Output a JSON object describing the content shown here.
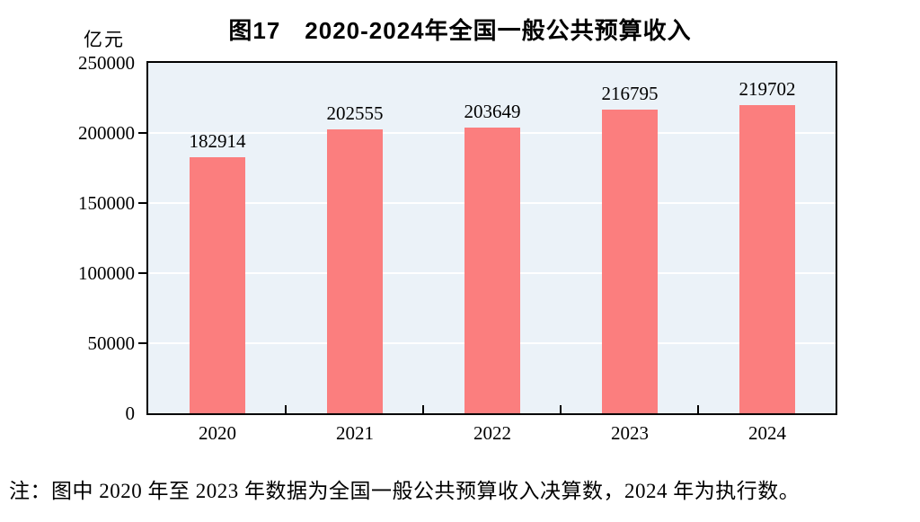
{
  "page": {
    "background": "#FFFFFF"
  },
  "header": {
    "title": "图17　2020-2024年全国一般公共预算收入",
    "unit_label": "亿元"
  },
  "footnote": "注：图中 2020 年至 2023 年数据为全国一般公共预算收入决算数，2024 年为执行数。",
  "chart_data": {
    "type": "bar",
    "title": "图17　2020-2024年全国一般公共预算收入",
    "categories": [
      "2020",
      "2021",
      "2022",
      "2023",
      "2024"
    ],
    "values": [
      182914,
      202555,
      203649,
      216795,
      219702
    ],
    "value_labels": [
      "182914",
      "202555",
      "203649",
      "216795",
      "219702"
    ],
    "xlabel": "",
    "ylabel": "亿元",
    "ylim": [
      0,
      250000
    ],
    "yticks": [
      0,
      50000,
      100000,
      150000,
      200000,
      250000
    ],
    "grid": true,
    "grid_axis": "y",
    "legend": false,
    "colors": {
      "bar": "#FB7E7E",
      "plot_background": "#EBF2F8",
      "gridline": "#FFFFFF",
      "axis": "#000000",
      "text": "#000000"
    }
  }
}
